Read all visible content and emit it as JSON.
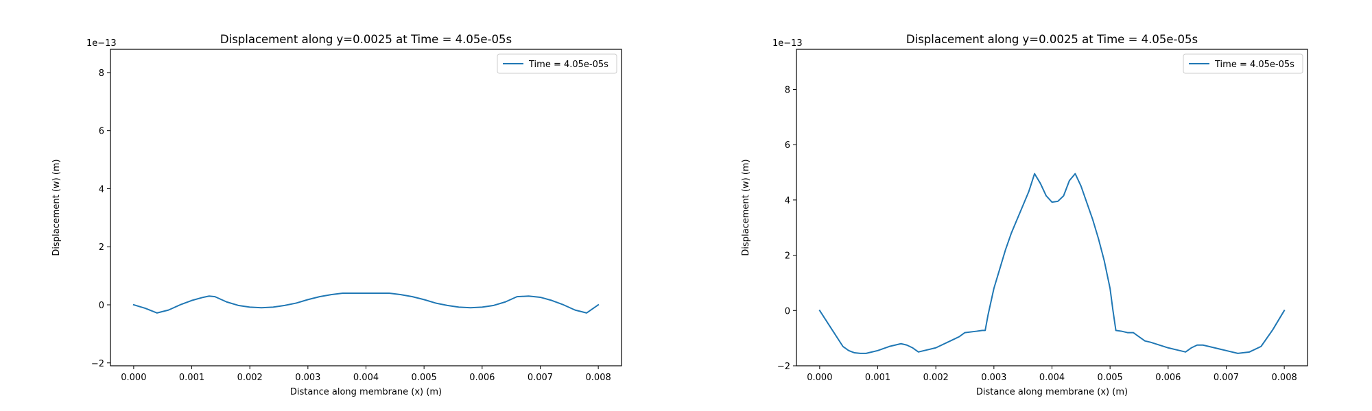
{
  "chart_data": [
    {
      "type": "line",
      "title": "Displacement along y=0.0025 at Time = 4.05e-05s",
      "xlabel": "Distance along membrane (x) (m)",
      "ylabel": "Displacement (w) (m)",
      "y_offset_label": "1e−13",
      "xlim": [
        -0.0004,
        0.0004
      ],
      "ylim": [
        -2.1,
        8.8
      ],
      "x_ticks": [
        0,
        0.001,
        0.002,
        0.003,
        0.004,
        0.005,
        0.006,
        0.007,
        0.008
      ],
      "x_tick_labels": [
        "0.000",
        "0.001",
        "0.002",
        "0.003",
        "0.004",
        "0.005",
        "0.006",
        "0.007",
        "0.008"
      ],
      "y_ticks": [
        -2,
        0,
        2,
        4,
        6,
        8
      ],
      "y_tick_labels": [
        "−2",
        "0",
        "2",
        "4",
        "6",
        "8"
      ],
      "grid": false,
      "legend_position": "top-right",
      "series": [
        {
          "name": "Time = 4.05e-05s",
          "color": "#1f77b4",
          "x": [
            0,
            0.0002,
            0.0004,
            0.0006,
            0.0008,
            0.001,
            0.0012,
            0.0013,
            0.0014,
            0.0016,
            0.0018,
            0.002,
            0.0022,
            0.0024,
            0.0026,
            0.0028,
            0.003,
            0.0032,
            0.0034,
            0.0036,
            0.0038,
            0.004,
            0.0042,
            0.0044,
            0.0046,
            0.0048,
            0.005,
            0.0052,
            0.0054,
            0.0056,
            0.0058,
            0.006,
            0.0062,
            0.0064,
            0.0066,
            0.0068,
            0.007,
            0.0072,
            0.0074,
            0.0076,
            0.0078,
            0.008
          ],
          "y": [
            0,
            -0.12,
            -0.28,
            -0.18,
            0.0,
            0.15,
            0.26,
            0.3,
            0.28,
            0.1,
            -0.02,
            -0.08,
            -0.1,
            -0.08,
            -0.02,
            0.06,
            0.18,
            0.28,
            0.35,
            0.4,
            0.4,
            0.4,
            0.4,
            0.4,
            0.35,
            0.28,
            0.18,
            0.06,
            -0.02,
            -0.08,
            -0.1,
            -0.08,
            -0.02,
            0.1,
            0.28,
            0.3,
            0.26,
            0.15,
            0.0,
            -0.18,
            -0.28,
            0.0
          ]
        }
      ]
    },
    {
      "type": "line",
      "title": "Displacement along y=0.0025 at Time = 4.05e-05s",
      "xlabel": "Distance along membrane (x) (m)",
      "ylabel": "Displacement (w) (m)",
      "y_offset_label": "1e−13",
      "xlim": [
        -0.0004,
        0.0004
      ],
      "ylim": [
        -2.0,
        9.45
      ],
      "x_ticks": [
        0,
        0.001,
        0.002,
        0.003,
        0.004,
        0.005,
        0.006,
        0.007,
        0.008
      ],
      "x_tick_labels": [
        "0.000",
        "0.001",
        "0.002",
        "0.003",
        "0.004",
        "0.005",
        "0.006",
        "0.007",
        "0.008"
      ],
      "y_ticks": [
        -2,
        0,
        2,
        4,
        6,
        8
      ],
      "y_tick_labels": [
        "−2",
        "0",
        "2",
        "4",
        "6",
        "8"
      ],
      "grid": false,
      "legend_position": "top-right",
      "series": [
        {
          "name": "Time = 4.05e-05s",
          "color": "#1f77b4",
          "x": [
            0,
            0.0002,
            0.0004,
            0.0005,
            0.0006,
            0.0007,
            0.0008,
            0.001,
            0.0012,
            0.0014,
            0.0015,
            0.0016,
            0.0017,
            0.002,
            0.0023,
            0.0024,
            0.0025,
            0.0027,
            0.0028,
            0.00285,
            0.0029,
            0.003,
            0.0031,
            0.0032,
            0.0033,
            0.0034,
            0.0035,
            0.0036,
            0.0037,
            0.0038,
            0.0039,
            0.004,
            0.0041,
            0.0042,
            0.0043,
            0.0044,
            0.0045,
            0.0046,
            0.0047,
            0.0048,
            0.0049,
            0.005,
            0.00505,
            0.0051,
            0.0052,
            0.0053,
            0.0054,
            0.0055,
            0.0056,
            0.0057,
            0.006,
            0.0062,
            0.0063,
            0.0064,
            0.0065,
            0.0066,
            0.007,
            0.0072,
            0.0074,
            0.0076,
            0.0078,
            0.008
          ],
          "y": [
            0,
            -0.65,
            -1.3,
            -1.45,
            -1.53,
            -1.55,
            -1.55,
            -1.45,
            -1.3,
            -1.2,
            -1.25,
            -1.35,
            -1.5,
            -1.35,
            -1.05,
            -0.95,
            -0.8,
            -0.75,
            -0.72,
            -0.72,
            -0.15,
            0.8,
            1.5,
            2.2,
            2.8,
            3.3,
            3.8,
            4.3,
            4.95,
            4.6,
            4.15,
            3.92,
            3.95,
            4.15,
            4.7,
            4.95,
            4.5,
            3.9,
            3.3,
            2.6,
            1.8,
            0.8,
            0.0,
            -0.72,
            -0.75,
            -0.8,
            -0.8,
            -0.95,
            -1.1,
            -1.15,
            -1.35,
            -1.45,
            -1.5,
            -1.35,
            -1.25,
            -1.25,
            -1.45,
            -1.55,
            -1.5,
            -1.3,
            -0.7,
            0.0
          ]
        }
      ]
    }
  ]
}
